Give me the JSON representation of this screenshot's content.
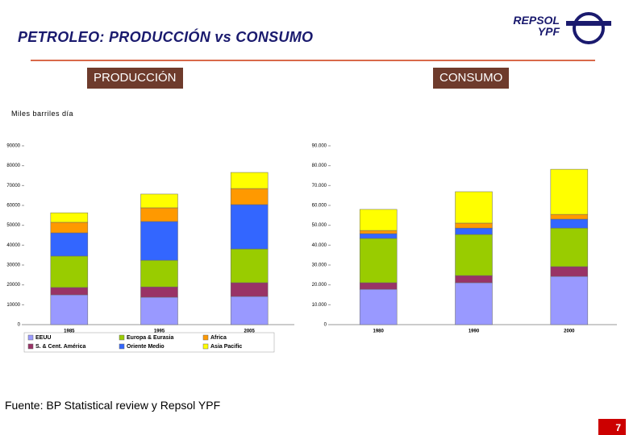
{
  "header": {
    "title": "PETROLEO: PRODUCCIÓN vs CONSUMO",
    "logo": [
      "REPSOL",
      "YPF"
    ]
  },
  "sections": [
    "PRODUCCIÓN",
    "CONSUMO"
  ],
  "unit": "Miles barriles día",
  "chart_data": [
    {
      "type": "bar",
      "stacked": true,
      "categories": [
        "1985",
        "1995",
        "2005"
      ],
      "ylim": [
        0,
        90000
      ],
      "yticks": [
        0,
        10000,
        20000,
        30000,
        40000,
        50000,
        60000,
        70000,
        80000,
        90000
      ],
      "series": [
        {
          "name": "EEUU",
          "color": "#9999ff",
          "values": [
            15000,
            13800,
            14200
          ]
        },
        {
          "name": "S. & Cent. América",
          "color": "#993366",
          "values": [
            3700,
            5200,
            6900
          ]
        },
        {
          "name": "Europa & Eurasia",
          "color": "#99cc00",
          "values": [
            15800,
            13400,
            17000
          ]
        },
        {
          "name": "Oriente Medio",
          "color": "#3366ff",
          "values": [
            11700,
            19500,
            22300
          ]
        },
        {
          "name": "Africa",
          "color": "#ff9900",
          "values": [
            5300,
            6900,
            8100
          ]
        },
        {
          "name": "Asia Pacific",
          "color": "#ffff00",
          "values": [
            4800,
            6900,
            8100
          ]
        }
      ]
    },
    {
      "type": "bar",
      "stacked": true,
      "categories": [
        "1980",
        "1990",
        "2000"
      ],
      "ylim": [
        0,
        90000
      ],
      "yticks": [
        0,
        {
          "value": 10000,
          "label": "10.000"
        },
        {
          "value": 20000,
          "label": "20.000"
        },
        {
          "value": 30000,
          "label": "30.000"
        },
        {
          "value": 40000,
          "label": "40.000"
        },
        {
          "value": 50000,
          "label": "50.000"
        },
        {
          "value": 60000,
          "label": "60.000"
        },
        {
          "value": 70000,
          "label": "70.000"
        },
        {
          "value": 80000,
          "label": "80.000"
        },
        {
          "value": 90000,
          "label": "90.000"
        }
      ],
      "series": [
        {
          "color": "#9999ff",
          "values": [
            17800,
            21100,
            24300
          ]
        },
        {
          "color": "#993366",
          "values": [
            3300,
            3600,
            4900
          ]
        },
        {
          "color": "#99cc00",
          "values": [
            22300,
            20700,
            19400
          ]
        },
        {
          "color": "#3366ff",
          "values": [
            2400,
            3200,
            4500
          ]
        },
        {
          "color": "#ff9900",
          "values": [
            1600,
            2500,
            2400
          ]
        },
        {
          "color": "#ffff00",
          "values": [
            10600,
            15800,
            22700
          ]
        }
      ]
    }
  ],
  "footer": {
    "source": "Fuente: BP Statistical review y Repsol YPF",
    "page": "7"
  }
}
